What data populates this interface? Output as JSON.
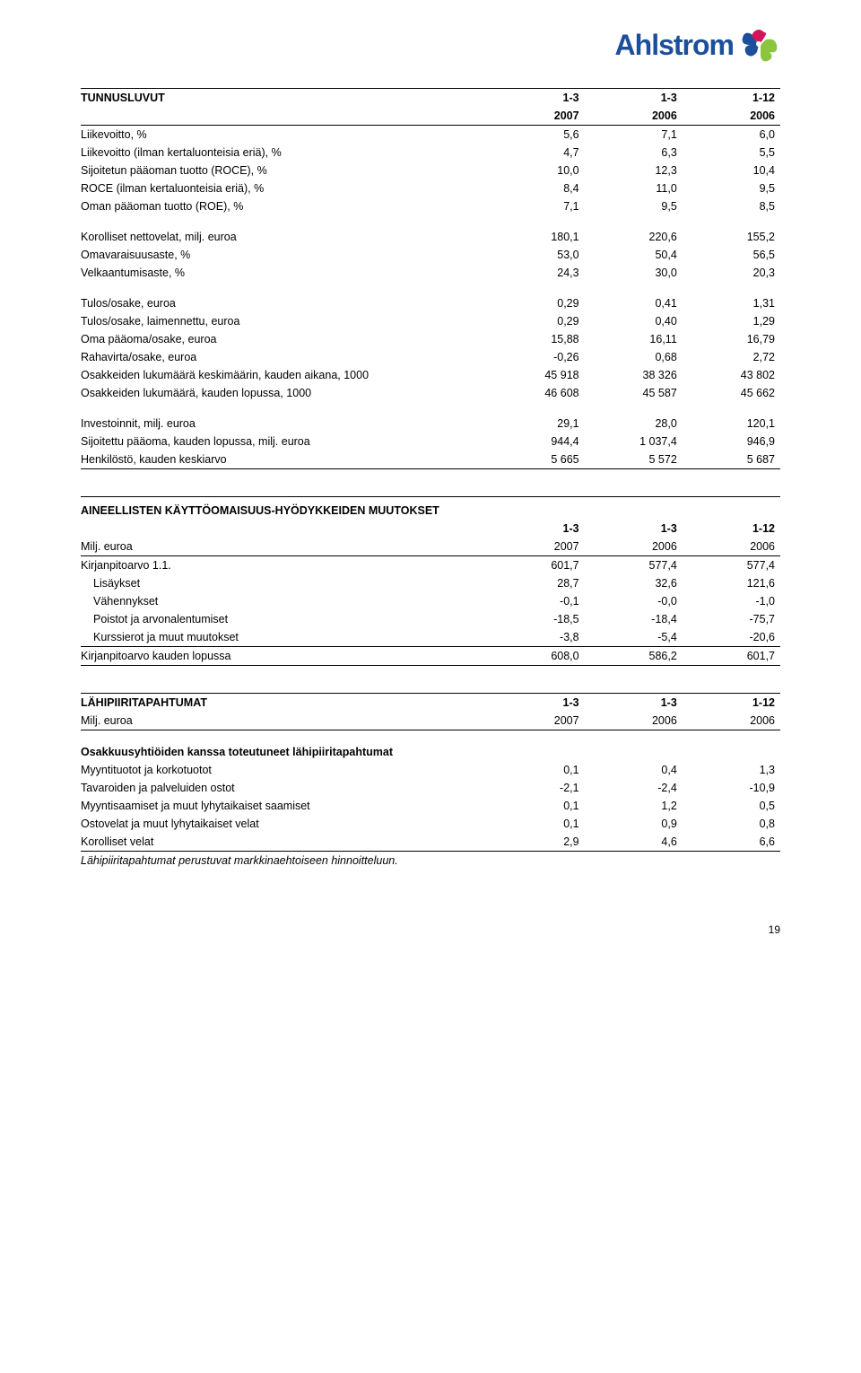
{
  "logo": {
    "text": "Ahlstrom"
  },
  "t1": {
    "header": [
      "TUNNUSLUVUT",
      "1-3",
      "1-3",
      "1-12"
    ],
    "years": [
      "",
      "2007",
      "2006",
      "2006"
    ],
    "block1": [
      [
        "Liikevoitto, %",
        "5,6",
        "7,1",
        "6,0"
      ],
      [
        "Liikevoitto (ilman kertaluonteisia eriä), %",
        "4,7",
        "6,3",
        "5,5"
      ],
      [
        "Sijoitetun pääoman tuotto (ROCE), %",
        "10,0",
        "12,3",
        "10,4"
      ],
      [
        "ROCE (ilman kertaluonteisia eriä), %",
        "8,4",
        "11,0",
        "9,5"
      ],
      [
        "Oman pääoman tuotto (ROE), %",
        "7,1",
        "9,5",
        "8,5"
      ]
    ],
    "block2": [
      [
        "Korolliset nettovelat, milj. euroa",
        "180,1",
        "220,6",
        "155,2"
      ],
      [
        "Omavaraisuusaste, %",
        "53,0",
        "50,4",
        "56,5"
      ],
      [
        "Velkaantumisaste, %",
        "24,3",
        "30,0",
        "20,3"
      ]
    ],
    "block3": [
      [
        "Tulos/osake, euroa",
        "0,29",
        "0,41",
        "1,31"
      ],
      [
        "Tulos/osake, laimennettu, euroa",
        "0,29",
        "0,40",
        "1,29"
      ],
      [
        "Oma pääoma/osake, euroa",
        "15,88",
        "16,11",
        "16,79"
      ],
      [
        "Rahavirta/osake, euroa",
        "-0,26",
        "0,68",
        "2,72"
      ],
      [
        "Osakkeiden lukumäärä keskimäärin, kauden aikana, 1000",
        "45 918",
        "38 326",
        "43 802"
      ],
      [
        "Osakkeiden lukumäärä, kauden lopussa, 1000",
        "46 608",
        "45 587",
        "45 662"
      ]
    ],
    "block4": [
      [
        "Investoinnit, milj. euroa",
        "29,1",
        "28,0",
        "120,1"
      ],
      [
        "Sijoitettu pääoma, kauden lopussa, milj. euroa",
        "944,4",
        "1 037,4",
        "946,9"
      ],
      [
        "Henkilöstö, kauden keskiarvo",
        "5 665",
        "5 572",
        "5 687"
      ]
    ]
  },
  "t2": {
    "title": "AINEELLISTEN KÄYTTÖOMAISUUS-HYÖDYKKEIDEN MUUTOKSET",
    "periods": [
      "",
      "1-3",
      "1-3",
      "1-12"
    ],
    "years": [
      "Milj. euroa",
      "2007",
      "2006",
      "2006"
    ],
    "rows": [
      [
        "Kirjanpitoarvo 1.1.",
        "601,7",
        "577,4",
        "577,4"
      ],
      [
        "Lisäykset",
        "28,7",
        "32,6",
        "121,6"
      ],
      [
        "Vähennykset",
        "-0,1",
        "-0,0",
        "-1,0"
      ],
      [
        "Poistot ja arvonalentumiset",
        "-18,5",
        "-18,4",
        "-75,7"
      ],
      [
        "Kurssierot ja muut muutokset",
        "-3,8",
        "-5,4",
        "-20,6"
      ]
    ],
    "total": [
      "Kirjanpitoarvo kauden lopussa",
      "608,0",
      "586,2",
      "601,7"
    ]
  },
  "t3": {
    "header": [
      "LÄHIPIIRITAPAHTUMAT",
      "1-3",
      "1-3",
      "1-12"
    ],
    "years": [
      "Milj. euroa",
      "2007",
      "2006",
      "2006"
    ],
    "subtitle": "Osakkuusyhtiöiden kanssa toteutuneet lähipiiritapahtumat",
    "rows": [
      [
        "Myyntituotot ja korkotuotot",
        "0,1",
        "0,4",
        "1,3"
      ],
      [
        "Tavaroiden ja palveluiden ostot",
        "-2,1",
        "-2,4",
        "-10,9"
      ],
      [
        "Myyntisaamiset ja muut lyhytaikaiset saamiset",
        "0,1",
        "1,2",
        "0,5"
      ],
      [
        "Ostovelat ja muut lyhytaikaiset velat",
        "0,1",
        "0,9",
        "0,8"
      ],
      [
        "Korolliset velat",
        "2,9",
        "4,6",
        "6,6"
      ]
    ],
    "footnote": "Lähipiiritapahtumat perustuvat markkinaehtoiseen hinnoitteluun."
  },
  "page": "19"
}
